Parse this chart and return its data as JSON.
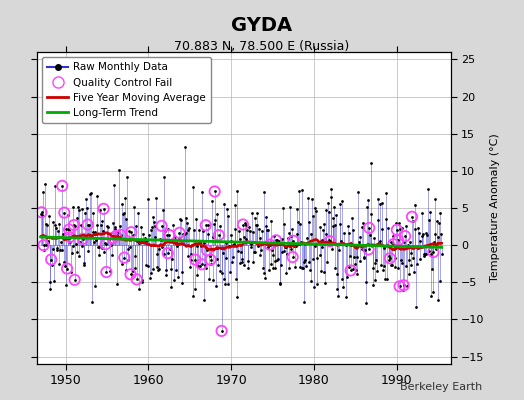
{
  "title": "GYDA",
  "subtitle": "70.883 N, 78.500 E (Russia)",
  "ylabel_right": "Temperature Anomaly (°C)",
  "watermark": "Berkeley Earth",
  "xlim": [
    1946.5,
    1996.5
  ],
  "ylim": [
    -16,
    26
  ],
  "yticks": [
    -15,
    -10,
    -5,
    0,
    5,
    10,
    15,
    20,
    25
  ],
  "xticks": [
    1950,
    1960,
    1970,
    1980,
    1990
  ],
  "bg_color": "#d8d8d8",
  "plot_bg_color": "#ffffff",
  "raw_color": "#3333cc",
  "raw_dot_color": "#000000",
  "qc_color": "#ff44ff",
  "ma_color": "#cc0000",
  "trend_color": "#00aa00",
  "grid_color": "#bbbbbb",
  "seed": 42
}
